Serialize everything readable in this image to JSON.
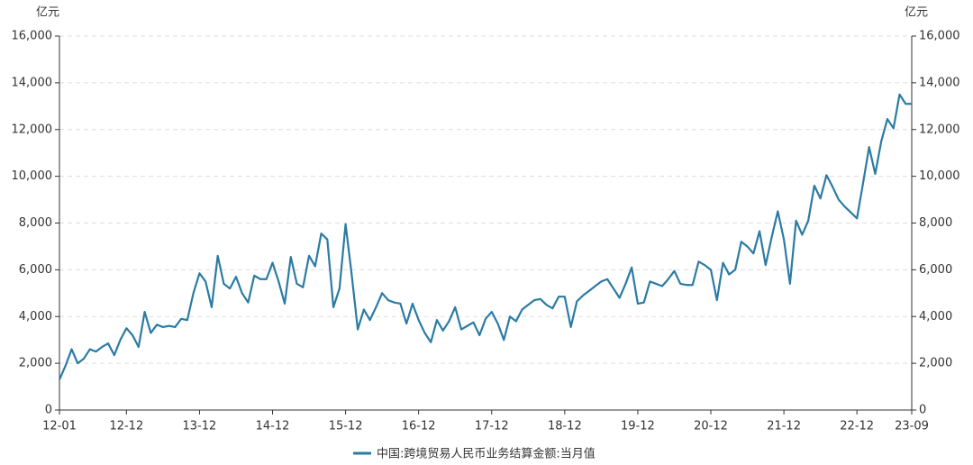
{
  "chart_data": {
    "type": "line",
    "y_label": "亿元",
    "y2_label": "亿元",
    "categories": [
      "12-01",
      null,
      null,
      null,
      null,
      null,
      null,
      null,
      null,
      null,
      null,
      "12-12",
      null,
      null,
      null,
      null,
      null,
      null,
      null,
      null,
      null,
      null,
      null,
      "13-12",
      null,
      null,
      null,
      null,
      null,
      null,
      null,
      null,
      null,
      null,
      null,
      "14-12",
      null,
      null,
      null,
      null,
      null,
      null,
      null,
      null,
      null,
      null,
      null,
      "15-12",
      null,
      null,
      null,
      null,
      null,
      null,
      null,
      null,
      null,
      null,
      null,
      "16-12",
      null,
      null,
      null,
      null,
      null,
      null,
      null,
      null,
      null,
      null,
      null,
      "17-12",
      null,
      null,
      null,
      null,
      null,
      null,
      null,
      null,
      null,
      null,
      null,
      "18-12",
      null,
      null,
      null,
      null,
      null,
      null,
      null,
      null,
      null,
      null,
      null,
      "19-12",
      null,
      null,
      null,
      null,
      null,
      null,
      null,
      null,
      null,
      null,
      null,
      "20-12",
      null,
      null,
      null,
      null,
      null,
      null,
      null,
      null,
      null,
      null,
      null,
      "21-12",
      null,
      null,
      null,
      null,
      null,
      null,
      null,
      null,
      null,
      null,
      null,
      "22-12",
      null,
      null,
      null,
      null,
      null,
      null,
      null,
      null,
      "23-09"
    ],
    "series": [
      {
        "name": "中国:跨境贸易人民币业务结算金额:当月值",
        "color": "#2b7ba3",
        "values": [
          1300,
          1900,
          2600,
          2000,
          2200,
          2600,
          2500,
          2700,
          2850,
          2350,
          3000,
          3500,
          3200,
          2700,
          4200,
          3300,
          3650,
          3550,
          3600,
          3550,
          3900,
          3850,
          5000,
          5850,
          5500,
          4400,
          6600,
          5400,
          5200,
          5700,
          5000,
          4600,
          5750,
          5600,
          5600,
          6300,
          5500,
          4550,
          6550,
          5400,
          5250,
          6600,
          6150,
          7550,
          7300,
          4400,
          5200,
          7950,
          5800,
          3450,
          4300,
          3850,
          4400,
          5000,
          4700,
          4600,
          4550,
          3700,
          4550,
          3850,
          3300,
          2900,
          3850,
          3400,
          3800,
          4400,
          3450,
          3600,
          3750,
          3200,
          3900,
          4200,
          3700,
          3000,
          4000,
          3800,
          4300,
          4500,
          4700,
          4750,
          4500,
          4350,
          4850,
          4850,
          3550,
          4650,
          4900,
          5100,
          5300,
          5500,
          5600,
          5200,
          4800,
          5400,
          6100,
          4550,
          4600,
          5500,
          5400,
          5300,
          5600,
          5950,
          5400,
          5350,
          5350,
          6350,
          6200,
          6000,
          4700,
          6300,
          5800,
          6000,
          7200,
          7000,
          6700,
          7650,
          6200,
          7400,
          8500,
          7300,
          5400,
          8100,
          7500,
          8100,
          9600,
          9050,
          10050,
          9550,
          9000,
          8700,
          8450,
          8200,
          9700,
          11250,
          10100,
          11500,
          12450,
          12050,
          13500,
          13100,
          13100
        ]
      }
    ],
    "ylim": [
      0,
      16000
    ],
    "yticks": [
      0,
      {
        "value": 2000,
        "label": "2,000"
      },
      {
        "value": 4000,
        "label": "4,000"
      },
      {
        "value": 6000,
        "label": "6,000"
      },
      {
        "value": 8000,
        "label": "8,000"
      },
      {
        "value": 10000,
        "label": "10,000"
      },
      {
        "value": 12000,
        "label": "12,000"
      },
      {
        "value": 14000,
        "label": "14,000"
      },
      {
        "value": 16000,
        "label": "16,000"
      }
    ],
    "y2lim": [
      0,
      16000
    ],
    "y2ticks": [
      0,
      {
        "value": 2000,
        "label": "2,000"
      },
      {
        "value": 4000,
        "label": "4,000"
      },
      {
        "value": 6000,
        "label": "6,000"
      },
      {
        "value": 8000,
        "label": "8,000"
      },
      {
        "value": 10000,
        "label": "10,000"
      },
      {
        "value": 12000,
        "label": "12,000"
      },
      {
        "value": 14000,
        "label": "14,000"
      },
      {
        "value": 16000,
        "label": "16,000"
      }
    ],
    "grid": true
  }
}
